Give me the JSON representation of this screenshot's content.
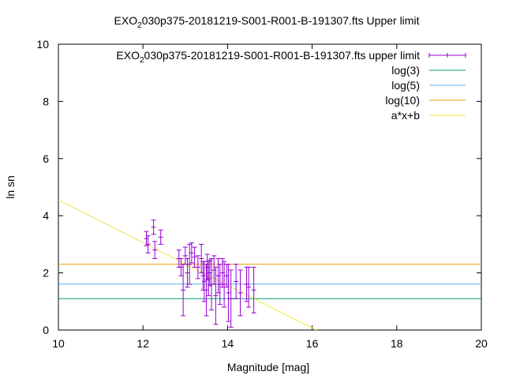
{
  "chart_data": {
    "type": "scatter",
    "title_pre": "EXO",
    "title_sub": "2",
    "title_post": "030p375-20181219-S001-R001-B-191307.fts Upper limit",
    "xlabel": "Magnitude [mag]",
    "ylabel": "ln sn",
    "xlim": [
      10,
      20
    ],
    "ylim": [
      0,
      10
    ],
    "xticks": [
      10,
      12,
      14,
      16,
      18,
      20
    ],
    "yticks": [
      0,
      2,
      4,
      6,
      8,
      10
    ],
    "grid": false,
    "legend_position": "top-right",
    "legend": [
      {
        "label_pre": "EXO",
        "label_sub": "2",
        "label_post": "030p375-20181219-S001-R001-B-191307.fts upper limit",
        "color": "#9400d3",
        "style": "errorbar"
      },
      {
        "label": "log(3)",
        "color": "#009e73",
        "style": "line"
      },
      {
        "label": "log(5)",
        "color": "#56b4e9",
        "style": "line"
      },
      {
        "label": "log(10)",
        "color": "#e69f00",
        "style": "line"
      },
      {
        "label": "a*x+b",
        "color": "#f0e442",
        "style": "line"
      }
    ],
    "hlines": [
      {
        "name": "log(3)",
        "y": 1.0986,
        "color": "#009e73"
      },
      {
        "name": "log(5)",
        "y": 1.6094,
        "color": "#56b4e9"
      },
      {
        "name": "log(10)",
        "y": 2.3026,
        "color": "#e69f00"
      }
    ],
    "fit_line": {
      "name": "a*x+b",
      "x": [
        10,
        16.1
      ],
      "y": [
        4.55,
        0
      ],
      "color": "#f0e442"
    },
    "series": [
      {
        "name": "upper limit",
        "color": "#9400d3",
        "points": [
          {
            "x": 12.08,
            "y": 3.2,
            "err": 0.25
          },
          {
            "x": 12.12,
            "y": 3.0,
            "err": 0.3
          },
          {
            "x": 12.25,
            "y": 3.6,
            "err": 0.25
          },
          {
            "x": 12.28,
            "y": 2.8,
            "err": 0.3
          },
          {
            "x": 12.42,
            "y": 3.25,
            "err": 0.25
          },
          {
            "x": 12.85,
            "y": 2.5,
            "err": 0.3
          },
          {
            "x": 12.9,
            "y": 2.2,
            "err": 0.3
          },
          {
            "x": 12.95,
            "y": 1.4,
            "err": 0.9
          },
          {
            "x": 13.0,
            "y": 2.6,
            "err": 0.3
          },
          {
            "x": 13.05,
            "y": 2.0,
            "err": 0.5
          },
          {
            "x": 13.1,
            "y": 2.3,
            "err": 0.7
          },
          {
            "x": 13.15,
            "y": 2.7,
            "err": 0.35
          },
          {
            "x": 13.22,
            "y": 2.55,
            "err": 0.35
          },
          {
            "x": 13.3,
            "y": 2.2,
            "err": 0.4
          },
          {
            "x": 13.38,
            "y": 2.5,
            "err": 0.5
          },
          {
            "x": 13.42,
            "y": 1.9,
            "err": 0.5
          },
          {
            "x": 13.45,
            "y": 1.7,
            "err": 0.7
          },
          {
            "x": 13.5,
            "y": 1.4,
            "err": 0.9
          },
          {
            "x": 13.52,
            "y": 2.2,
            "err": 0.45
          },
          {
            "x": 13.55,
            "y": 1.8,
            "err": 0.6
          },
          {
            "x": 13.58,
            "y": 2.0,
            "err": 0.45
          },
          {
            "x": 13.62,
            "y": 1.6,
            "err": 0.9
          },
          {
            "x": 13.68,
            "y": 2.1,
            "err": 0.5
          },
          {
            "x": 13.72,
            "y": 1.2,
            "err": 1.0
          },
          {
            "x": 13.78,
            "y": 1.9,
            "err": 0.6
          },
          {
            "x": 13.82,
            "y": 1.6,
            "err": 0.7
          },
          {
            "x": 13.88,
            "y": 2.0,
            "err": 0.5
          },
          {
            "x": 13.92,
            "y": 1.6,
            "err": 0.8
          },
          {
            "x": 13.98,
            "y": 1.9,
            "err": 0.4
          },
          {
            "x": 14.02,
            "y": 1.3,
            "err": 1.0
          },
          {
            "x": 14.08,
            "y": 1.1,
            "err": 1.0
          },
          {
            "x": 14.2,
            "y": 1.7,
            "err": 0.6
          },
          {
            "x": 14.3,
            "y": 1.3,
            "err": 0.8
          },
          {
            "x": 14.45,
            "y": 1.6,
            "err": 0.6
          },
          {
            "x": 14.5,
            "y": 1.5,
            "err": 0.7
          },
          {
            "x": 14.62,
            "y": 1.4,
            "err": 0.8
          }
        ]
      }
    ]
  }
}
